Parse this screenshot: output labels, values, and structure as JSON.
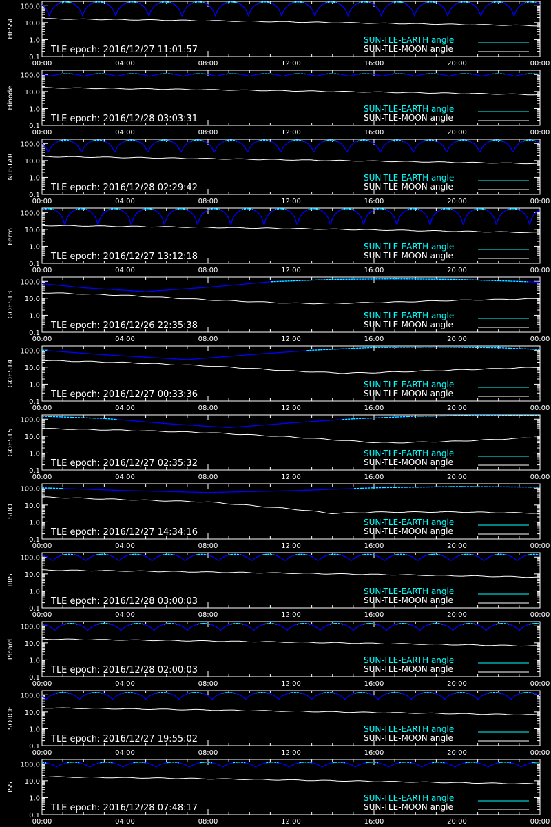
{
  "colors": {
    "background": "#000000",
    "axes": "#ffffff",
    "earth_angle_line": "#00ffff",
    "earth_angle_occulted": "#0000ff",
    "moon_angle_line": "#ffffff"
  },
  "legend": {
    "earth": "SUN-TLE-EARTH angle",
    "moon": "SUN-TLE-MOON angle"
  },
  "y_ticks": [
    "100.0",
    "10.0",
    "1.0",
    "0.1"
  ],
  "x_ticks": [
    "00:00",
    "04:00",
    "08:00",
    "12:00",
    "16:00",
    "20:00",
    "00:00"
  ],
  "epoch_prefix": "TLE epoch:",
  "chart_data": [
    {
      "type": "line",
      "satellite": "HESSI",
      "tle_epoch": "2016/12/27 11:01:57",
      "yscale": "log",
      "ylim": [
        0.1,
        180
      ],
      "x_unit": "hours",
      "xlim": [
        0,
        24
      ],
      "earth_angle": {
        "min": 22,
        "max": 165,
        "period_h": 1.6,
        "phase_h": 0.35
      },
      "moon_angle": {
        "x": [
          0,
          6,
          12,
          18,
          24
        ],
        "y": [
          17,
          14,
          11,
          8.5,
          6.5
        ]
      }
    },
    {
      "type": "line",
      "satellite": "Hinode",
      "tle_epoch": "2016/12/28 03:03:31",
      "yscale": "log",
      "ylim": [
        0.1,
        180
      ],
      "x_unit": "hours",
      "xlim": [
        0,
        24
      ],
      "earth_angle": {
        "min": 80,
        "max": 112,
        "period_h": 1.6,
        "phase_h": 0.4
      },
      "moon_angle": {
        "x": [
          0,
          6,
          12,
          18,
          24
        ],
        "y": [
          17,
          14,
          11,
          8.5,
          6.5
        ]
      }
    },
    {
      "type": "line",
      "satellite": "NuSTAR",
      "tle_epoch": "2016/12/28 02:29:42",
      "yscale": "log",
      "ylim": [
        0.1,
        180
      ],
      "x_unit": "hours",
      "xlim": [
        0,
        24
      ],
      "earth_angle": {
        "min": 28,
        "max": 160,
        "period_h": 1.6,
        "phase_h": 0.3
      },
      "moon_angle": {
        "x": [
          0,
          6,
          12,
          18,
          24
        ],
        "y": [
          17,
          14,
          11,
          8.5,
          6.5
        ]
      }
    },
    {
      "type": "line",
      "satellite": "Fermi",
      "tle_epoch": "2016/12/27 13:12:18",
      "yscale": "log",
      "ylim": [
        0.1,
        180
      ],
      "x_unit": "hours",
      "xlim": [
        0,
        24
      ],
      "earth_angle": {
        "min": 15,
        "max": 165,
        "period_h": 1.6,
        "phase_h": 1.1
      },
      "moon_angle": {
        "x": [
          0,
          6,
          12,
          18,
          24
        ],
        "y": [
          17,
          14,
          11,
          8.5,
          6.5
        ]
      }
    },
    {
      "type": "line",
      "satellite": "GOES13",
      "tle_epoch": "2016/12/26 22:35:38",
      "yscale": "log",
      "ylim": [
        0.1,
        180
      ],
      "x_unit": "hours",
      "xlim": [
        0,
        24
      ],
      "earth_angle": {
        "x": [
          0,
          2,
          5,
          8,
          11,
          14,
          17,
          20,
          24
        ],
        "y": [
          75,
          42,
          25,
          45,
          95,
          130,
          140,
          130,
          90
        ]
      },
      "moon_angle": {
        "x": [
          0,
          4,
          8,
          12,
          13.5,
          16,
          20,
          24
        ],
        "y": [
          22,
          15,
          8,
          5.2,
          5,
          5.6,
          7.5,
          9.5
        ]
      }
    },
    {
      "type": "line",
      "satellite": "GOES14",
      "tle_epoch": "2016/12/27 00:33:36",
      "yscale": "log",
      "ylim": [
        0.1,
        180
      ],
      "x_unit": "hours",
      "xlim": [
        0,
        24
      ],
      "earth_angle": {
        "x": [
          0,
          3,
          7,
          10,
          13,
          16,
          19,
          22,
          24
        ],
        "y": [
          100,
          55,
          28,
          55,
          100,
          145,
          155,
          140,
          110
        ]
      },
      "moon_angle": {
        "x": [
          0,
          4,
          8,
          12,
          14.5,
          16,
          20,
          24
        ],
        "y": [
          25,
          19,
          12,
          6,
          4.5,
          4.8,
          6.8,
          10
        ]
      }
    },
    {
      "type": "line",
      "satellite": "GOES15",
      "tle_epoch": "2016/12/27 02:35:32",
      "yscale": "log",
      "ylim": [
        0.1,
        180
      ],
      "x_unit": "hours",
      "xlim": [
        0,
        24
      ],
      "earth_angle": {
        "x": [
          0,
          3,
          6,
          9,
          12,
          15,
          18,
          21,
          24
        ],
        "y": [
          150,
          110,
          55,
          32,
          60,
          105,
          150,
          165,
          160
        ]
      },
      "moon_angle": {
        "x": [
          0,
          4,
          8,
          12,
          16,
          17,
          20,
          24
        ],
        "y": [
          28,
          22,
          16,
          9,
          4.2,
          4,
          5,
          8.5
        ]
      }
    },
    {
      "type": "line",
      "satellite": "SDO",
      "tle_epoch": "2016/12/27 14:34:16",
      "yscale": "log",
      "ylim": [
        0.1,
        180
      ],
      "x_unit": "hours",
      "xlim": [
        0,
        24
      ],
      "earth_angle": {
        "x": [
          0,
          4,
          8,
          12,
          16,
          20,
          24
        ],
        "y": [
          105,
          72,
          55,
          70,
          105,
          125,
          115
        ]
      },
      "moon_angle": {
        "x": [
          0,
          4,
          8,
          12,
          14,
          16,
          20,
          24
        ],
        "y": [
          30,
          21,
          15,
          6,
          3.2,
          3.8,
          3.9,
          3.3
        ]
      }
    },
    {
      "type": "line",
      "satellite": "IRIS",
      "tle_epoch": "2016/12/28 03:00:03",
      "yscale": "log",
      "ylim": [
        0.1,
        180
      ],
      "x_unit": "hours",
      "xlim": [
        0,
        24
      ],
      "earth_angle": {
        "min": 60,
        "max": 145,
        "period_h": 1.6,
        "phase_h": 0.5
      },
      "moon_angle": {
        "x": [
          0,
          6,
          12,
          18,
          24
        ],
        "y": [
          17,
          14,
          11,
          8.5,
          6.5
        ]
      }
    },
    {
      "type": "line",
      "satellite": "Picard",
      "tle_epoch": "2016/12/28 02:00:03",
      "yscale": "log",
      "ylim": [
        0.1,
        180
      ],
      "x_unit": "hours",
      "xlim": [
        0,
        24
      ],
      "earth_angle": {
        "min": 55,
        "max": 140,
        "period_h": 1.6,
        "phase_h": 0.6
      },
      "moon_angle": {
        "x": [
          0,
          6,
          12,
          18,
          24
        ],
        "y": [
          17,
          14,
          11,
          8.5,
          6.5
        ]
      }
    },
    {
      "type": "line",
      "satellite": "SORCE",
      "tle_epoch": "2016/12/27 19:55:02",
      "yscale": "log",
      "ylim": [
        0.1,
        180
      ],
      "x_unit": "hours",
      "xlim": [
        0,
        24
      ],
      "earth_angle": {
        "min": 55,
        "max": 140,
        "period_h": 1.6,
        "phase_h": 0.2
      },
      "moon_angle": {
        "x": [
          0,
          6,
          12,
          18,
          24
        ],
        "y": [
          17,
          14,
          11,
          8.5,
          6.5
        ]
      }
    },
    {
      "type": "line",
      "satellite": "ISS",
      "tle_epoch": "2016/12/28 07:48:17",
      "yscale": "log",
      "ylim": [
        0.1,
        180
      ],
      "x_unit": "hours",
      "xlim": [
        0,
        24
      ],
      "earth_angle": {
        "min": 65,
        "max": 125,
        "period_h": 1.6,
        "phase_h": 0.7
      },
      "moon_angle": {
        "x": [
          0,
          6,
          12,
          18,
          24
        ],
        "y": [
          17,
          14,
          11,
          8.5,
          6.5
        ]
      }
    }
  ]
}
